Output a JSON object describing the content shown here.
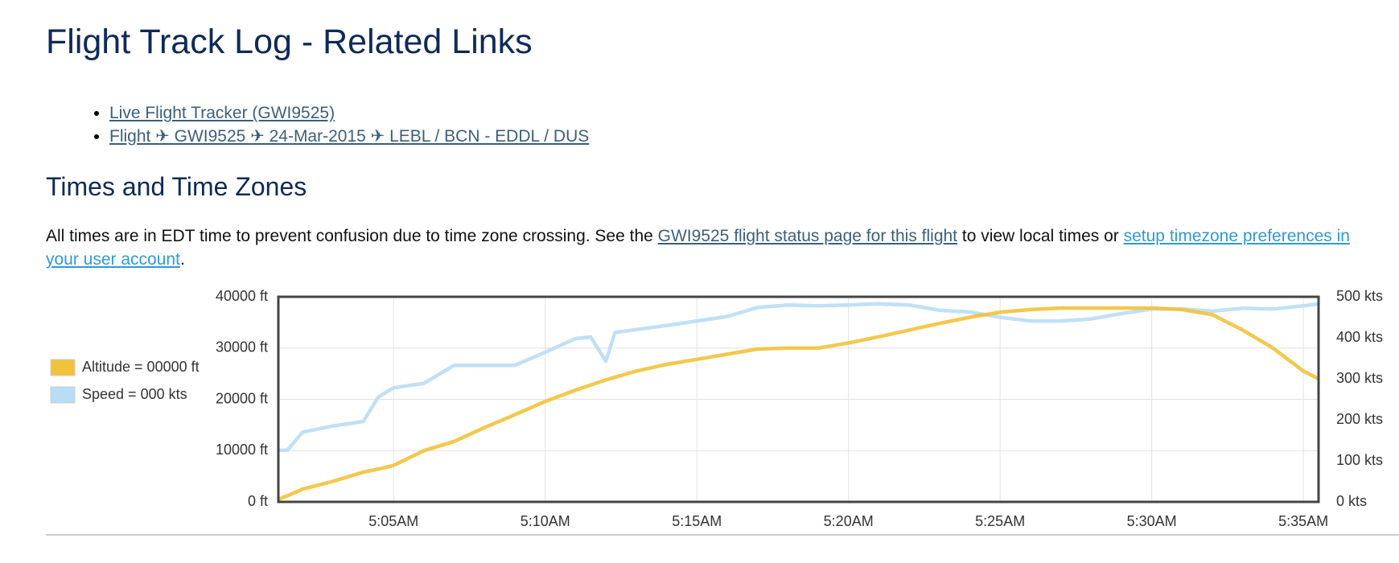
{
  "header": {
    "title": "Flight Track Log - Related Links"
  },
  "links": [
    "Live Flight Tracker (GWI9525)",
    "Flight ✈ GWI9525 ✈ 24-Mar-2015 ✈ LEBL / BCN - EDDL / DUS"
  ],
  "section": {
    "title": "Times and Time Zones",
    "text_before": "All times are in EDT time to prevent confusion due to time zone crossing. See the ",
    "link_status": "GWI9525 flight status page for this flight",
    "text_middle": " to view local times or ",
    "link_prefs": "setup timezone preferences in your user account",
    "text_after": "."
  },
  "chart_data": {
    "type": "line",
    "x": [
      1.2,
      1.5,
      2,
      3,
      4,
      4.5,
      5,
      6,
      7,
      8,
      9,
      10,
      11,
      11.5,
      12,
      12.3,
      13,
      14,
      15,
      16,
      17,
      18,
      19,
      20,
      21,
      22,
      23,
      24,
      25,
      26,
      27,
      28,
      29,
      30,
      31,
      32,
      33,
      34,
      35,
      35.5
    ],
    "series": [
      {
        "name": "Speed = 000 kts",
        "color": "#b9ddf5",
        "axis": "y2",
        "values": [
          126,
          126,
          170,
          185,
          196,
          256,
          278,
          289,
          333,
          333,
          333,
          365,
          398,
          402,
          343,
          413,
          420,
          430,
          441,
          452,
          474,
          480,
          478,
          480,
          483,
          480,
          467,
          463,
          450,
          441,
          441,
          446,
          459,
          470,
          470,
          465,
          472,
          470,
          478,
          483
        ]
      },
      {
        "name": "Altitude = 00000 ft",
        "color": "#f2c23a",
        "values": [
          500,
          1200,
          2500,
          4000,
          5800,
          6400,
          7100,
          10000,
          11800,
          14500,
          17000,
          19600,
          21800,
          22800,
          23800,
          24300,
          25500,
          26800,
          27800,
          28800,
          29800,
          30000,
          30000,
          31000,
          32200,
          33500,
          34800,
          36000,
          37000,
          37500,
          37800,
          37800,
          37800,
          37800,
          37500,
          36500,
          33500,
          30000,
          25500,
          24000
        ]
      }
    ],
    "legend_order": [
      "Altitude = 00000 ft",
      "Speed = 000 kts"
    ],
    "xlim": [
      1.2,
      35.5
    ],
    "xticks": [
      {
        "value": 5,
        "label": "5:05AM"
      },
      {
        "value": 10,
        "label": "5:10AM"
      },
      {
        "value": 15,
        "label": "5:15AM"
      },
      {
        "value": 20,
        "label": "5:20AM"
      },
      {
        "value": 25,
        "label": "5:25AM"
      },
      {
        "value": 30,
        "label": "5:30AM"
      },
      {
        "value": 35,
        "label": "5:35AM"
      }
    ],
    "ylim": [
      0,
      40000
    ],
    "yticks": [
      {
        "value": 0,
        "label": "0 ft"
      },
      {
        "value": 10000,
        "label": "10000 ft"
      },
      {
        "value": 20000,
        "label": "20000 ft"
      },
      {
        "value": 30000,
        "label": "30000 ft"
      },
      {
        "value": 40000,
        "label": "40000 ft"
      }
    ],
    "y2lim": [
      0,
      500
    ],
    "y2ticks": [
      {
        "value": 0,
        "label": "0 kts"
      },
      {
        "value": 100,
        "label": "100 kts"
      },
      {
        "value": 200,
        "label": "200 kts"
      },
      {
        "value": 300,
        "label": "300 kts"
      },
      {
        "value": 400,
        "label": "400 kts"
      },
      {
        "value": 500,
        "label": "500 kts"
      }
    ],
    "grid": true
  }
}
